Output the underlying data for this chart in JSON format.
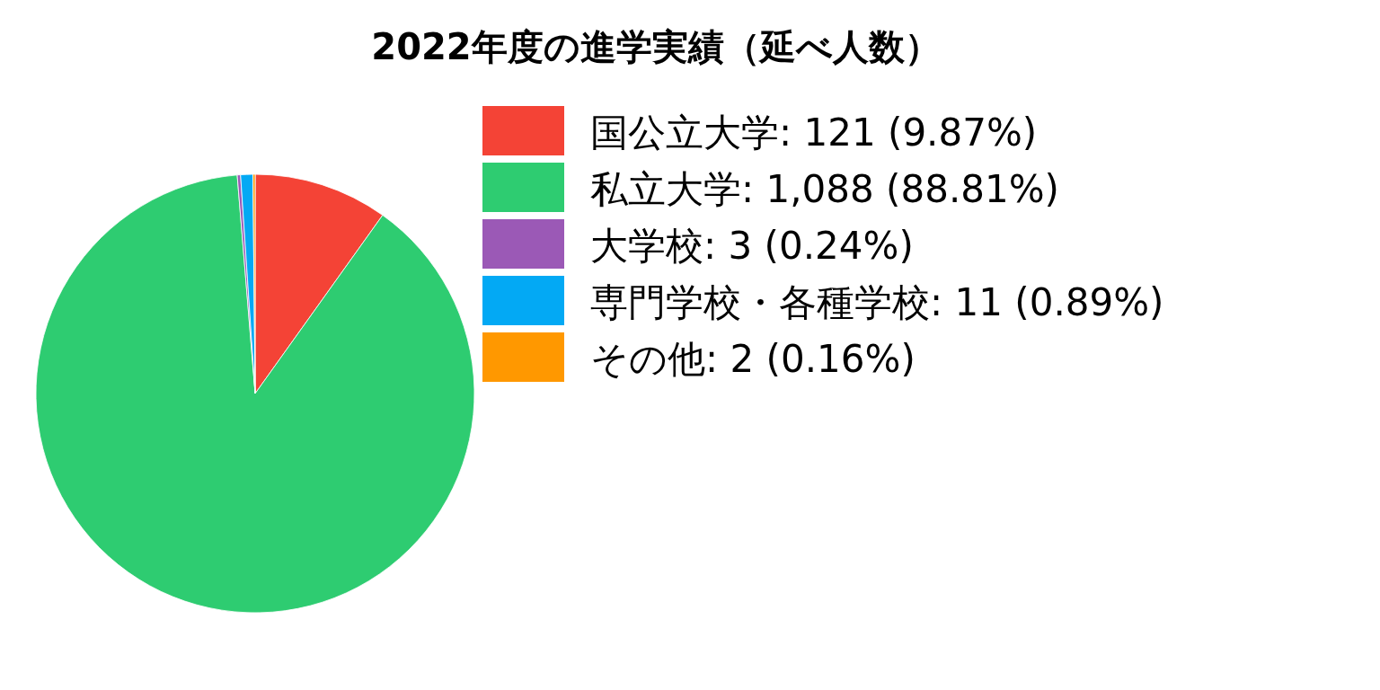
{
  "chart_data": {
    "type": "pie",
    "title": "2022年度の進学実績（延べ人数）",
    "categories": [
      "国公立大学",
      "私立大学",
      "大学校",
      "専門学校・各種学校",
      "その他"
    ],
    "values": [
      121,
      1088,
      3,
      11,
      2
    ],
    "value_labels": [
      "121 (9.87%)",
      "1,088 (88.81%)",
      "3 (0.24%)",
      "11 (0.89%)",
      "2 (0.16%)"
    ],
    "colors": [
      "#f44336",
      "#2ecc71",
      "#9b59b6",
      "#03a9f4",
      "#ff9800"
    ],
    "legend": "right"
  }
}
